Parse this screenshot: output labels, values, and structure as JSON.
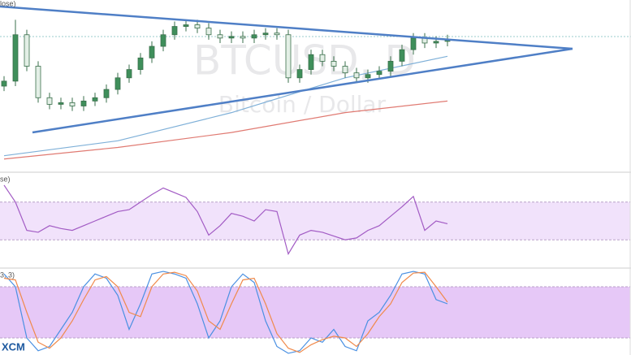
{
  "chart_data": [
    {
      "type": "candlestick",
      "title": "BTCUSD, D",
      "subtitle": "Bitcoin / Dollar",
      "label": "lose)",
      "ylim": [
        0,
        100
      ],
      "up_color": "#3f8f5b",
      "down_color": "#e3efe6",
      "open": [
        50,
        53,
        81,
        62,
        43,
        39,
        40,
        38,
        41,
        43,
        48,
        55,
        60,
        67,
        74,
        81,
        86,
        87,
        85,
        81,
        79,
        80,
        79,
        81,
        82,
        81,
        55,
        60,
        69,
        65,
        62,
        58,
        55,
        57,
        59,
        65,
        72,
        79,
        76,
        77
      ],
      "high": [
        56,
        90,
        84,
        65,
        46,
        43,
        43,
        44,
        46,
        51,
        58,
        63,
        70,
        77,
        84,
        89,
        90,
        90,
        88,
        84,
        83,
        83,
        84,
        85,
        85,
        84,
        63,
        72,
        72,
        68,
        65,
        61,
        60,
        62,
        68,
        75,
        82,
        82,
        80,
        81
      ],
      "low": [
        47,
        50,
        59,
        40,
        36,
        36,
        35,
        35,
        38,
        40,
        45,
        52,
        57,
        64,
        71,
        78,
        83,
        82,
        78,
        76,
        76,
        76,
        76,
        78,
        78,
        52,
        52,
        57,
        62,
        59,
        55,
        52,
        52,
        54,
        56,
        62,
        69,
        73,
        73,
        74
      ],
      "close": [
        53,
        81,
        62,
        43,
        39,
        40,
        38,
        41,
        43,
        48,
        55,
        60,
        67,
        74,
        81,
        86,
        87,
        85,
        81,
        79,
        80,
        79,
        81,
        82,
        81,
        55,
        60,
        69,
        65,
        62,
        58,
        55,
        57,
        59,
        65,
        72,
        79,
        76,
        77,
        78
      ],
      "series": [
        {
          "color": "#7fb0d8",
          "x": [
            0,
            10,
            20,
            30,
            39
          ],
          "values": [
            8,
            17,
            34,
            55,
            68
          ]
        },
        {
          "color": "#e07a72",
          "x": [
            0,
            10,
            20,
            30,
            39
          ],
          "values": [
            6,
            13,
            22,
            34,
            41
          ]
        }
      ]
    },
    {
      "type": "line",
      "label": "se)",
      "ylim": [
        0,
        100
      ],
      "band": [
        30,
        70
      ],
      "band_color": "#f1e2fb",
      "series": [
        {
          "color": "#a25bc4",
          "values": [
            88,
            70,
            40,
            38,
            45,
            42,
            40,
            45,
            50,
            55,
            60,
            62,
            70,
            78,
            85,
            80,
            75,
            60,
            35,
            45,
            58,
            55,
            50,
            62,
            60,
            15,
            35,
            40,
            38,
            34,
            30,
            32,
            40,
            45,
            55,
            65,
            76,
            40,
            50,
            47
          ]
        }
      ]
    },
    {
      "type": "line",
      "label": "3, 3)",
      "logo": "XCM",
      "ylim": [
        0,
        100
      ],
      "band": [
        20,
        80
      ],
      "band_color": "#e6c8f7",
      "series": [
        {
          "color": "#4a90e2",
          "values": [
            95,
            80,
            20,
            5,
            10,
            30,
            50,
            80,
            95,
            90,
            70,
            30,
            60,
            95,
            98,
            95,
            90,
            60,
            20,
            40,
            80,
            95,
            85,
            40,
            10,
            2,
            5,
            20,
            15,
            30,
            10,
            5,
            40,
            50,
            70,
            95,
            98,
            95,
            65,
            60
          ]
        },
        {
          "color": "#f08a4b",
          "values": [
            90,
            88,
            50,
            15,
            8,
            20,
            40,
            65,
            88,
            92,
            80,
            50,
            45,
            80,
            95,
            97,
            93,
            75,
            40,
            30,
            60,
            88,
            90,
            60,
            25,
            8,
            3,
            12,
            18,
            22,
            20,
            10,
            25,
            45,
            60,
            85,
            96,
            97,
            80,
            62
          ]
        }
      ]
    }
  ]
}
